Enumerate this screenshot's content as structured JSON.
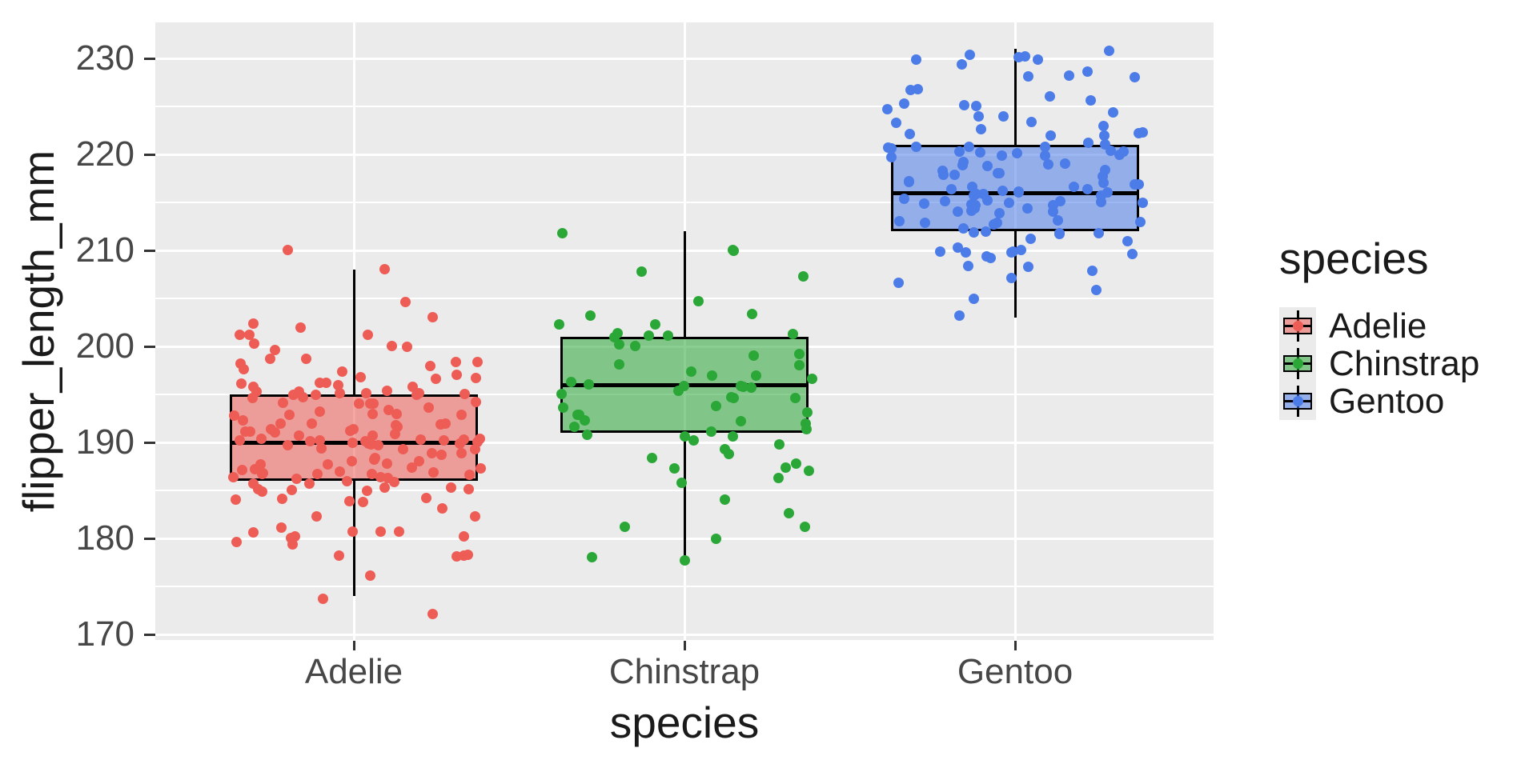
{
  "figure": {
    "background": "#FFFFFF"
  },
  "panel": {
    "background": "#EBEBEB",
    "grid_major_color": "#FFFFFF",
    "grid_minor_color": "#FFFFFF"
  },
  "legend": {
    "title": "species",
    "entries": [
      {
        "label": "Adelie",
        "color": "#EE5C56"
      },
      {
        "label": "Chinstrap",
        "color": "#2AA737"
      },
      {
        "label": "Gentoo",
        "color": "#4C7CE8"
      }
    ]
  },
  "chart_data": {
    "type": "box+jitter",
    "title": "",
    "xlabel": "species",
    "ylabel": "flipper_length_mm",
    "categories": [
      "Adelie",
      "Chinstrap",
      "Gentoo"
    ],
    "ylim": [
      169,
      234
    ],
    "yticks": [
      170,
      180,
      190,
      200,
      210,
      220,
      230
    ],
    "grid": true,
    "legend_position": "right",
    "series": [
      {
        "name": "Adelie",
        "color": "#EE5C56",
        "box": {
          "whisker_low": 174,
          "q1": 186,
          "median": 190,
          "q3": 195,
          "whisker_high": 208
        },
        "points": [
          172,
          174,
          176,
          178,
          178,
          178,
          178,
          179,
          180,
          180,
          180,
          180,
          181,
          181,
          181,
          181,
          181,
          182,
          182,
          183,
          184,
          184,
          184,
          184,
          184,
          185,
          185,
          185,
          185,
          185,
          185,
          185,
          186,
          186,
          186,
          186,
          186,
          186,
          186,
          186,
          187,
          187,
          187,
          187,
          187,
          187,
          187,
          187,
          187,
          187,
          187,
          188,
          188,
          188,
          188,
          188,
          188,
          188,
          189,
          189,
          189,
          189,
          189,
          189,
          190,
          190,
          190,
          190,
          190,
          190,
          190,
          190,
          190,
          190,
          190,
          190,
          190,
          190,
          190,
          190,
          191,
          191,
          191,
          191,
          191,
          191,
          191,
          191,
          191,
          192,
          192,
          192,
          192,
          192,
          192,
          192,
          193,
          193,
          193,
          193,
          193,
          193,
          193,
          194,
          194,
          194,
          194,
          194,
          194,
          195,
          195,
          195,
          195,
          195,
          195,
          195,
          195,
          195,
          195,
          195,
          195,
          196,
          196,
          196,
          196,
          196,
          196,
          197,
          197,
          197,
          197,
          197,
          198,
          198,
          198,
          198,
          198,
          199,
          199,
          200,
          200,
          200,
          200,
          201,
          201,
          201,
          202,
          202,
          203,
          205,
          208,
          210
        ]
      },
      {
        "name": "Chinstrap",
        "color": "#2AA737",
        "box": {
          "whisker_low": 178,
          "q1": 191,
          "median": 196,
          "q3": 201,
          "whisker_high": 212
        },
        "points": [
          178,
          178,
          180,
          181,
          181,
          183,
          184,
          186,
          186,
          187,
          187,
          187,
          188,
          188,
          189,
          189,
          190,
          190,
          191,
          191,
          191,
          191,
          191,
          192,
          192,
          192,
          192,
          193,
          193,
          193,
          194,
          194,
          195,
          195,
          195,
          195,
          195,
          196,
          196,
          196,
          196,
          196,
          196,
          197,
          197,
          197,
          197,
          198,
          198,
          199,
          199,
          200,
          200,
          201,
          201,
          201,
          201,
          201,
          202,
          202,
          203,
          203,
          205,
          207,
          208,
          210,
          210,
          212
        ]
      },
      {
        "name": "Gentoo",
        "color": "#4C7CE8",
        "box": {
          "whisker_low": 203,
          "q1": 212,
          "median": 216,
          "q3": 221,
          "whisker_high": 231
        },
        "points": [
          203,
          205,
          206,
          207,
          207,
          208,
          208,
          208,
          209,
          209,
          210,
          210,
          210,
          210,
          210,
          210,
          210,
          211,
          211,
          212,
          212,
          212,
          212,
          212,
          212,
          213,
          213,
          213,
          213,
          213,
          213,
          214,
          214,
          214,
          214,
          214,
          214,
          215,
          215,
          215,
          215,
          215,
          215,
          215,
          215,
          215,
          215,
          215,
          216,
          216,
          216,
          216,
          216,
          216,
          216,
          216,
          216,
          216,
          217,
          217,
          217,
          217,
          217,
          217,
          217,
          218,
          218,
          218,
          218,
          218,
          218,
          218,
          219,
          219,
          219,
          219,
          219,
          220,
          220,
          220,
          220,
          220,
          220,
          220,
          220,
          220,
          221,
          221,
          221,
          221,
          221,
          221,
          221,
          221,
          222,
          222,
          222,
          222,
          222,
          223,
          223,
          223,
          223,
          224,
          224,
          224,
          225,
          225,
          225,
          225,
          226,
          226,
          227,
          227,
          228,
          228,
          228,
          229,
          229,
          230,
          230,
          230,
          230,
          230,
          231
        ]
      }
    ]
  }
}
